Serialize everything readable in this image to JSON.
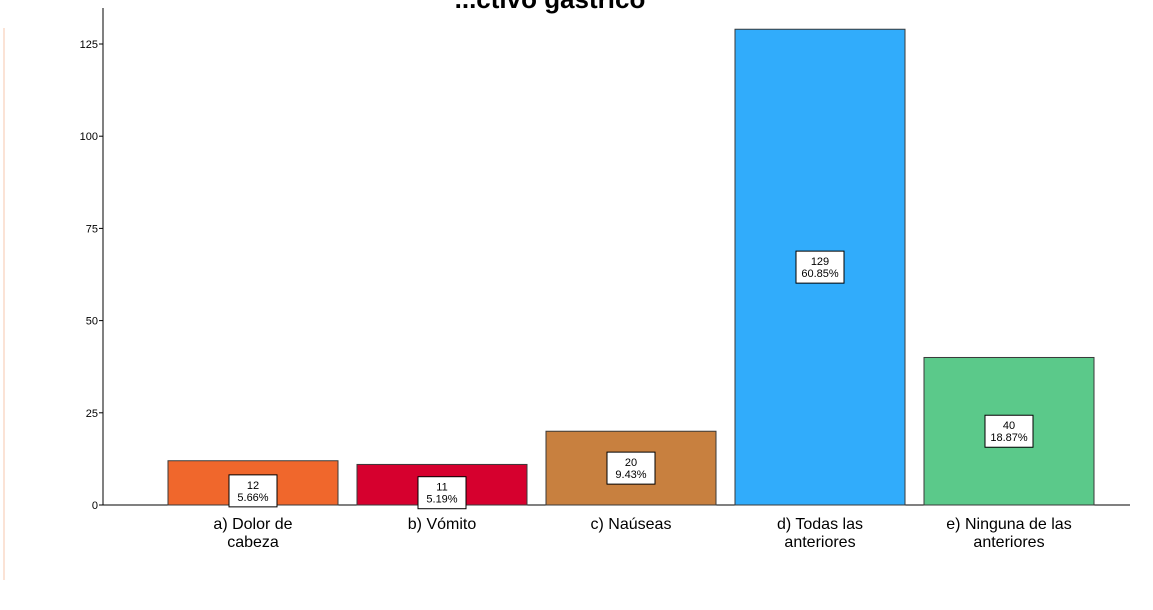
{
  "chart_data": {
    "type": "bar",
    "title": "...ctivo gástrico",
    "categories": [
      [
        "a) Dolor de",
        "cabeza"
      ],
      [
        "b) Vómito"
      ],
      [
        "c) Naúseas"
      ],
      [
        "d) Todas las",
        "anteriores"
      ],
      [
        "e) Ninguna de las",
        "anteriores"
      ]
    ],
    "values": [
      12,
      11,
      20,
      129,
      40
    ],
    "percent_labels": [
      "5.66%",
      "5.19%",
      "9.43%",
      "60.85%",
      "18.87%"
    ],
    "colors": [
      "#f0672c",
      "#d6002e",
      "#c8803f",
      "#31acfb",
      "#5bc98a"
    ],
    "ylim": [
      0,
      135
    ],
    "yticks": [
      0,
      25,
      50,
      75,
      100,
      125
    ],
    "grid": false,
    "xlabel": "",
    "ylabel": ""
  }
}
